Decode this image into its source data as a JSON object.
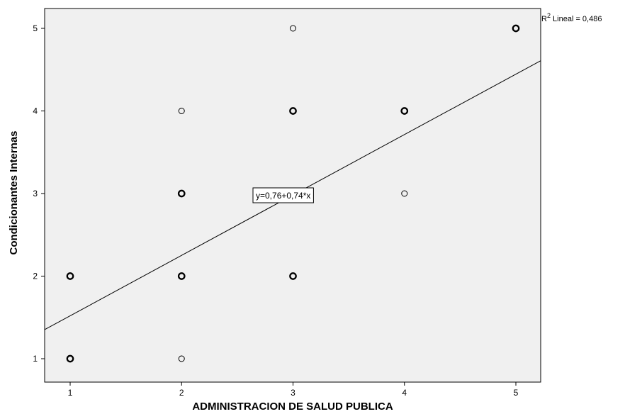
{
  "chart_data": {
    "type": "scatter",
    "title": "",
    "xlabel": "ADMINISTRACION DE SALUD PUBLICA",
    "ylabel": "Condicionantes Internas",
    "xlim": [
      0.8,
      5.2
    ],
    "ylim": [
      0.8,
      5.25
    ],
    "xticks": [
      "1",
      "2",
      "3",
      "4",
      "5"
    ],
    "yticks": [
      "1",
      "2",
      "3",
      "4",
      "5"
    ],
    "grid": false,
    "points": [
      {
        "x": 1,
        "y": 1,
        "bold": true
      },
      {
        "x": 1,
        "y": 2,
        "bold": true
      },
      {
        "x": 2,
        "y": 1,
        "bold": false
      },
      {
        "x": 2,
        "y": 2,
        "bold": true
      },
      {
        "x": 2,
        "y": 3,
        "bold": true
      },
      {
        "x": 2,
        "y": 4,
        "bold": false
      },
      {
        "x": 3,
        "y": 2,
        "bold": true
      },
      {
        "x": 3,
        "y": 4,
        "bold": true
      },
      {
        "x": 3,
        "y": 5,
        "bold": false
      },
      {
        "x": 4,
        "y": 3,
        "bold": false
      },
      {
        "x": 4,
        "y": 4,
        "bold": true
      },
      {
        "x": 5,
        "y": 5,
        "bold": true
      }
    ],
    "fit_line": {
      "intercept": 0.76,
      "slope": 0.74
    },
    "annotations": {
      "equation": "y=0,76+0,74*x",
      "r2_prefix": "R",
      "r2_sup": "2",
      "r2_suffix": " Lineal = 0,486"
    },
    "colors": {
      "plot_background": "#f0f0f0",
      "marker": "#000000",
      "line": "#000000"
    }
  }
}
